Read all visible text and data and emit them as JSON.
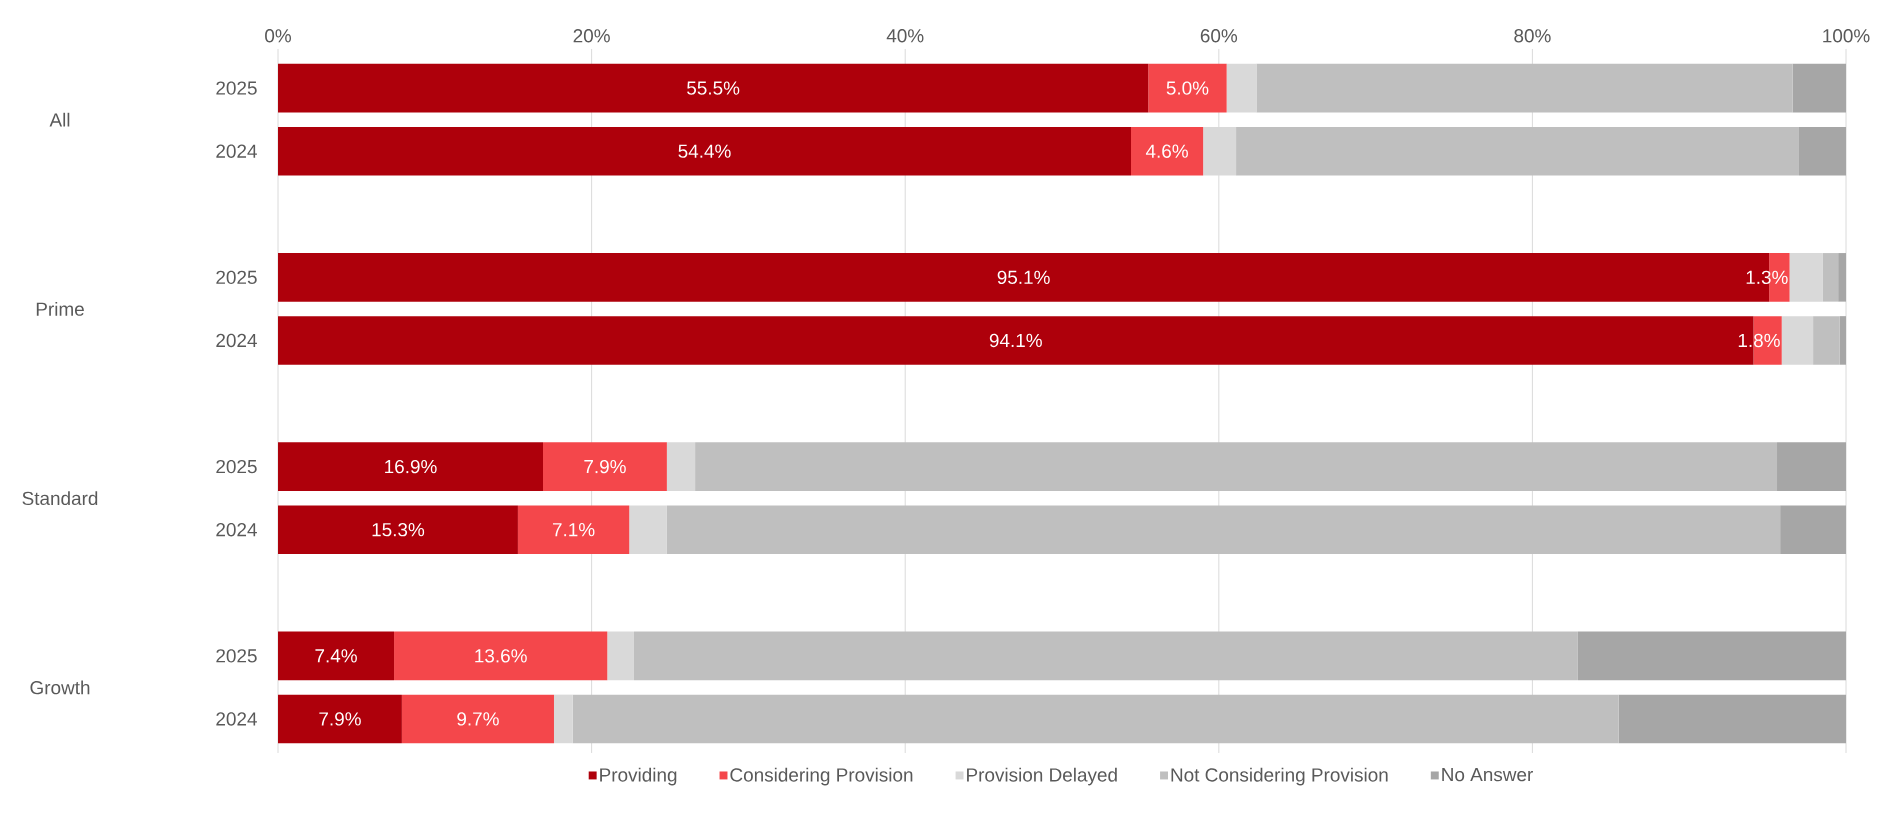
{
  "chart_data": {
    "type": "bar",
    "orientation": "horizontal",
    "stacked": true,
    "categories": [
      "2025",
      "2024",
      "2025",
      "2024",
      "2025",
      "2024",
      "2025",
      "2024"
    ],
    "annotations": [
      "All",
      "Prime",
      "Standard",
      "Growth"
    ],
    "series": [
      {
        "name": "Providing",
        "color": "#ae000b",
        "values": [
          55.5,
          54.4,
          95.1,
          94.1,
          16.9,
          15.3,
          7.4,
          7.9
        ],
        "value_labels": [
          "55.5%",
          "54.4%",
          "95.1%",
          "94.1%",
          "16.9%",
          "15.3%",
          "7.4%",
          "7.9%"
        ]
      },
      {
        "name": "Considering Provision",
        "color": "#f4474b",
        "values": [
          5.0,
          4.6,
          1.3,
          1.8,
          7.9,
          7.1,
          13.6,
          9.7
        ],
        "value_labels": [
          "5.0%",
          "4.6%",
          "1.3%",
          "1.8%",
          "7.9%",
          "7.1%",
          "13.6%",
          "9.7%"
        ]
      },
      {
        "name": "Provision Delayed",
        "color": "#d9d9d9",
        "values": [
          1.9,
          2.1,
          2.1,
          2.0,
          1.8,
          2.4,
          1.7,
          1.2
        ]
      },
      {
        "name": "Not Considering Provision",
        "color": "#bfbfbf",
        "values": [
          34.2,
          35.9,
          1.0,
          1.7,
          69.0,
          71.0,
          60.2,
          66.7
        ]
      },
      {
        "name": "No Answer",
        "color": "#a6a6a6",
        "values": [
          3.4,
          3.0,
          0.5,
          0.4,
          4.4,
          4.2,
          17.1,
          14.5
        ]
      }
    ],
    "xlim": [
      0,
      100
    ],
    "xticks": [
      {
        "value": 0,
        "label": "0%"
      },
      {
        "value": 20,
        "label": "20%"
      },
      {
        "value": 40,
        "label": "40%"
      },
      {
        "value": 60,
        "label": "60%"
      },
      {
        "value": 80,
        "label": "80%"
      },
      {
        "value": 100,
        "label": "100%"
      }
    ],
    "grid": "x",
    "legend": "bottom"
  }
}
